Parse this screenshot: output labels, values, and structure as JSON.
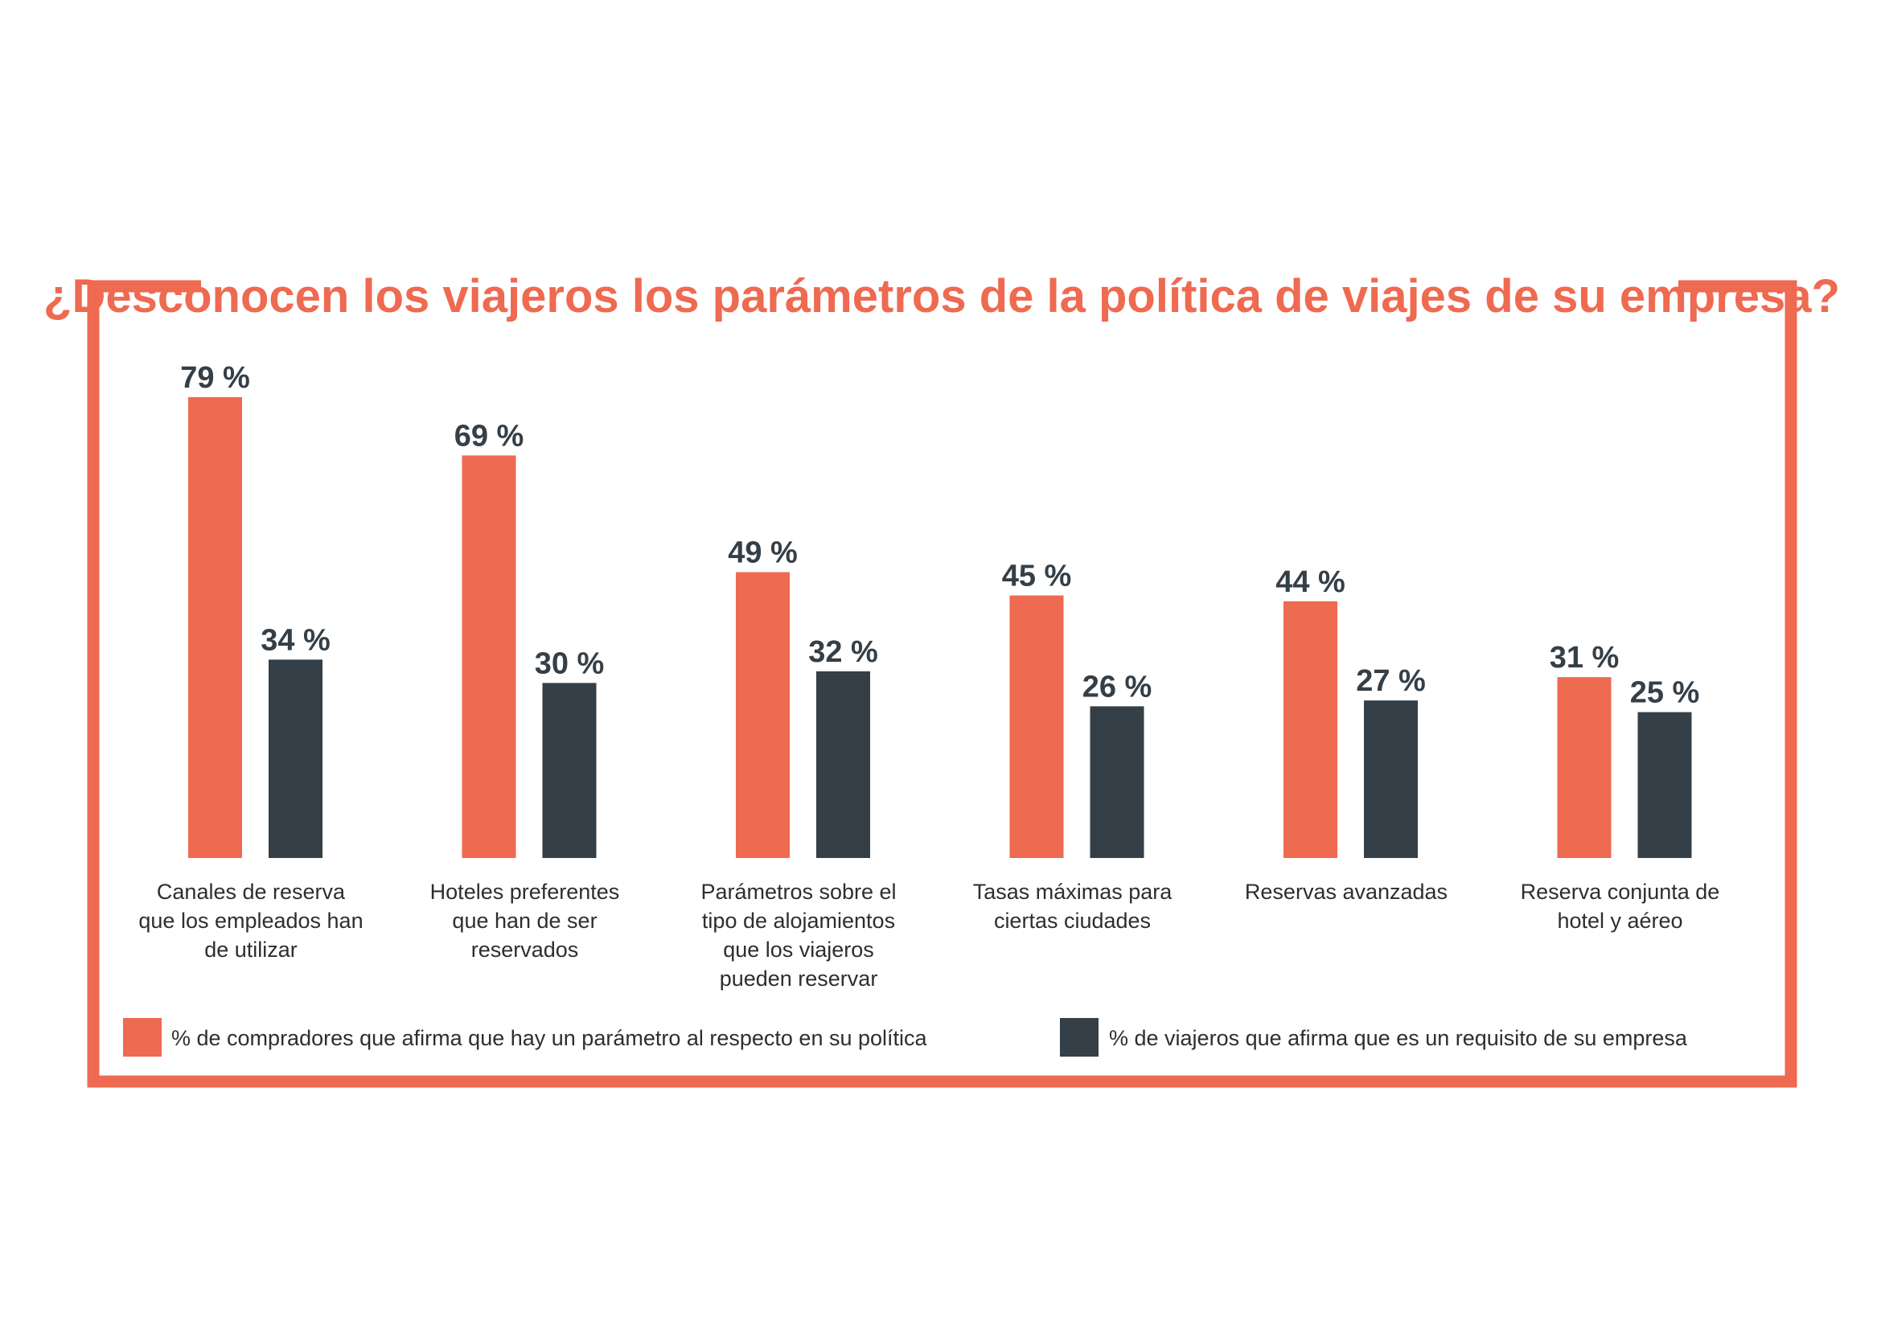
{
  "colors": {
    "accent": "#ee6a50",
    "dark": "#343f47",
    "text": "#2e2e2e"
  },
  "chart_data": {
    "type": "bar",
    "title": "¿Desconocen los viajeros los parámetros de la política de viajes de su empresa?",
    "categories": [
      [
        "Canales de reserva",
        "que los empleados han",
        "de utilizar"
      ],
      [
        "Hoteles preferentes",
        "que han de ser",
        "reservados"
      ],
      [
        "Parámetros sobre el",
        "tipo de alojamientos",
        "que los viajeros",
        "pueden reservar"
      ],
      [
        "Tasas máximas para",
        "ciertas ciudades"
      ],
      [
        "Reservas avanzadas"
      ],
      [
        "Reserva conjunta de",
        "hotel y aéreo"
      ]
    ],
    "series": [
      {
        "name": "% de compradores que afirma que hay un parámetro al respecto en su política",
        "color": "#ee6a50",
        "values": [
          79,
          69,
          49,
          45,
          44,
          31
        ],
        "labels": [
          "79 %",
          "69 %",
          "49 %",
          "45 %",
          "44 %",
          "31 %"
        ]
      },
      {
        "name": "% de viajeros que afirma que es un requisito de su empresa",
        "color": "#343f47",
        "values": [
          34,
          30,
          32,
          26,
          27,
          25
        ],
        "labels": [
          "34 %",
          "30 %",
          "32 %",
          "26 %",
          "27 %",
          "25 %"
        ]
      }
    ],
    "ylim": [
      0,
      100
    ],
    "grid": false,
    "legend_position": "bottom"
  }
}
